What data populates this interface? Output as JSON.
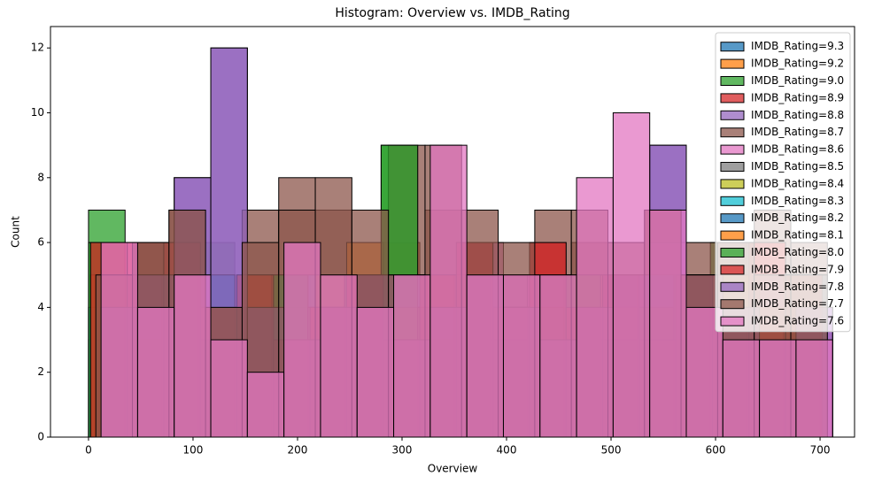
{
  "chart_data": {
    "type": "histogram",
    "title": "Histogram: Overview vs. IMDB_Rating",
    "x_label": "Overview",
    "y_label": "Count",
    "xlim": [
      -36.4,
      733
    ],
    "ylim": [
      0,
      12.66
    ],
    "xticks": [
      0,
      100,
      200,
      300,
      400,
      500,
      600,
      700
    ],
    "yticks": [
      0,
      2,
      4,
      6,
      8,
      10,
      12
    ],
    "legend": "upper right",
    "series": [
      {
        "name": "IMDB_Rating=9.3",
        "color": "#1f77b4",
        "bins": [
          0,
          35,
          70,
          105,
          140,
          175,
          210,
          245,
          280,
          315,
          350,
          385,
          420,
          455,
          490,
          525,
          560,
          595,
          630,
          665,
          700
        ],
        "values": [
          4,
          5,
          3,
          4,
          5,
          3,
          4,
          5,
          4,
          3,
          5,
          4,
          4,
          3,
          5,
          4,
          3,
          4,
          5,
          3
        ]
      },
      {
        "name": "IMDB_Rating=9.2",
        "color": "#ff7f0e",
        "bins": [
          2,
          37,
          72,
          107,
          142,
          177,
          212,
          247,
          282,
          317,
          352,
          387,
          422,
          457,
          492,
          527,
          562,
          597,
          632,
          667,
          702
        ],
        "values": [
          5,
          4,
          5,
          3,
          4,
          5,
          4,
          3,
          6,
          4,
          3,
          5,
          4,
          4,
          5,
          3,
          4,
          5,
          3,
          4
        ]
      },
      {
        "name": "IMDB_Rating=9.0",
        "color": "#2ca02c",
        "bins": [
          0,
          35,
          70,
          105,
          140,
          175,
          210,
          245,
          280,
          315,
          350,
          385,
          420,
          455,
          490,
          525,
          560,
          595,
          630,
          665,
          700
        ],
        "values": [
          7,
          5,
          4,
          6,
          3,
          5,
          4,
          3,
          9,
          5,
          4,
          3,
          5,
          4,
          3,
          5,
          4,
          6,
          5,
          4
        ]
      },
      {
        "name": "IMDB_Rating=8.9",
        "color": "#d62728",
        "bins": [
          2,
          37,
          72,
          107,
          142,
          177,
          212,
          247,
          282,
          317,
          352,
          387,
          422,
          457,
          492,
          527,
          562,
          597,
          632,
          667,
          702
        ],
        "values": [
          5,
          6,
          4,
          5,
          3,
          4,
          5,
          3,
          4,
          5,
          6,
          4,
          6,
          5,
          4,
          3,
          5,
          4,
          6,
          3
        ]
      },
      {
        "name": "IMDB_Rating=8.8",
        "color": "#9467bd",
        "bins": [
          12,
          47,
          82,
          117,
          152,
          187,
          222,
          257,
          292,
          327,
          362,
          397,
          432,
          467,
          502,
          537,
          572,
          607,
          642,
          677,
          712
        ],
        "values": [
          4,
          5,
          8,
          12,
          4,
          3,
          4,
          5,
          4,
          3,
          5,
          4,
          3,
          5,
          4,
          9,
          5,
          4,
          3,
          4
        ]
      },
      {
        "name": "IMDB_Rating=8.7",
        "color": "#8c564b",
        "bins": [
          7,
          42,
          77,
          112,
          147,
          182,
          217,
          252,
          287,
          322,
          357,
          392,
          427,
          462,
          497,
          532,
          567,
          602,
          637,
          672,
          707
        ],
        "values": [
          4,
          6,
          7,
          4,
          7,
          8,
          7,
          5,
          9,
          7,
          6,
          5,
          7,
          6,
          5,
          7,
          6,
          6,
          7,
          6
        ]
      },
      {
        "name": "IMDB_Rating=8.6",
        "color": "#e377c2",
        "bins": [
          12,
          47,
          82,
          117,
          152,
          187,
          222,
          257,
          292,
          327,
          362,
          397,
          432,
          467,
          502,
          537,
          572,
          607,
          642,
          677,
          712
        ],
        "values": [
          5,
          4,
          5,
          4,
          3,
          4,
          5,
          4,
          5,
          4,
          6,
          5,
          4,
          5,
          5,
          6,
          5,
          4,
          5,
          4
        ]
      },
      {
        "name": "IMDB_Rating=8.5",
        "color": "#7f7f7f",
        "bins": [
          0,
          35,
          70,
          105,
          140,
          175,
          210,
          245,
          280,
          315,
          350,
          385,
          420,
          455,
          490,
          525,
          560,
          595,
          630,
          665,
          700
        ],
        "values": [
          3,
          4,
          5,
          3,
          4,
          3,
          4,
          5,
          4,
          3,
          4,
          5,
          3,
          4,
          5,
          3,
          4,
          5,
          3,
          4
        ]
      },
      {
        "name": "IMDB_Rating=8.4",
        "color": "#bcbd22",
        "bins": [
          2,
          37,
          72,
          107,
          142,
          177,
          212,
          247,
          282,
          317,
          352,
          387,
          422,
          457,
          492,
          527,
          562,
          597,
          632,
          667,
          702
        ],
        "values": [
          4,
          3,
          5,
          4,
          3,
          4,
          5,
          3,
          4,
          5,
          3,
          4,
          4,
          5,
          3,
          4,
          5,
          3,
          4,
          3
        ]
      },
      {
        "name": "IMDB_Rating=8.3",
        "color": "#17becf",
        "bins": [
          7,
          42,
          77,
          112,
          147,
          182,
          217,
          252,
          287,
          322,
          357,
          392,
          427,
          462,
          497,
          532,
          567,
          602,
          637,
          672,
          707
        ],
        "values": [
          3,
          5,
          4,
          3,
          4,
          5,
          3,
          4,
          5,
          4,
          3,
          4,
          5,
          3,
          4,
          5,
          3,
          4,
          4,
          5
        ]
      },
      {
        "name": "IMDB_Rating=8.2",
        "color": "#1f77b4",
        "bins": [
          0,
          35,
          70,
          105,
          140,
          175,
          210,
          245,
          280,
          315,
          350,
          385,
          420,
          455,
          490,
          525,
          560,
          595,
          630,
          665,
          700
        ],
        "values": [
          4,
          4,
          3,
          5,
          4,
          3,
          4,
          5,
          3,
          4,
          5,
          4,
          3,
          4,
          5,
          4,
          3,
          5,
          4,
          4
        ]
      },
      {
        "name": "IMDB_Rating=8.1",
        "color": "#ff7f0e",
        "bins": [
          2,
          37,
          72,
          107,
          142,
          177,
          212,
          247,
          282,
          317,
          352,
          387,
          422,
          457,
          492,
          527,
          562,
          597,
          632,
          667,
          702
        ],
        "values": [
          5,
          3,
          4,
          4,
          5,
          3,
          4,
          6,
          4,
          3,
          5,
          4,
          3,
          5,
          4,
          4,
          3,
          5,
          4,
          3
        ]
      },
      {
        "name": "IMDB_Rating=8.0",
        "color": "#2ca02c",
        "bins": [
          0,
          35,
          70,
          105,
          140,
          175,
          210,
          245,
          280,
          315,
          350,
          385,
          420,
          455,
          490,
          525,
          560,
          595,
          630,
          665,
          700
        ],
        "values": [
          6,
          4,
          5,
          3,
          4,
          5,
          4,
          5,
          9,
          4,
          5,
          3,
          4,
          5,
          3,
          4,
          5,
          4,
          3,
          5
        ]
      },
      {
        "name": "IMDB_Rating=7.9",
        "color": "#d62728",
        "bins": [
          2,
          37,
          72,
          107,
          142,
          177,
          212,
          247,
          282,
          317,
          352,
          387,
          422,
          457,
          492,
          527,
          562,
          597,
          632,
          667,
          702
        ],
        "values": [
          6,
          5,
          6,
          4,
          5,
          3,
          4,
          5,
          3,
          5,
          6,
          4,
          6,
          4,
          5,
          3,
          5,
          4,
          6,
          5
        ]
      },
      {
        "name": "IMDB_Rating=7.8",
        "color": "#9467bd",
        "bins": [
          12,
          47,
          82,
          117,
          152,
          187,
          222,
          257,
          292,
          327,
          362,
          397,
          432,
          467,
          502,
          537,
          572,
          607,
          642,
          677,
          712
        ],
        "values": [
          4,
          5,
          8,
          12,
          4,
          3,
          4,
          5,
          3,
          4,
          5,
          4,
          3,
          4,
          5,
          9,
          5,
          4,
          3,
          4
        ]
      },
      {
        "name": "IMDB_Rating=7.7",
        "color": "#8c564b",
        "bins": [
          7,
          42,
          77,
          112,
          147,
          182,
          217,
          252,
          287,
          322,
          357,
          392,
          427,
          462,
          497,
          532,
          567,
          602,
          637,
          672,
          707
        ],
        "values": [
          5,
          6,
          7,
          4,
          6,
          7,
          8,
          7,
          5,
          9,
          7,
          6,
          5,
          7,
          6,
          7,
          5,
          6,
          5,
          5
        ]
      },
      {
        "name": "IMDB_Rating=7.6",
        "color": "#e377c2",
        "bins": [
          12,
          47,
          82,
          117,
          152,
          187,
          222,
          257,
          292,
          327,
          362,
          397,
          432,
          467,
          502,
          537,
          572,
          607,
          642,
          677,
          712
        ],
        "values": [
          6,
          4,
          5,
          3,
          2,
          6,
          5,
          4,
          5,
          9,
          5,
          5,
          5,
          8,
          10,
          7,
          4,
          3,
          3,
          3
        ]
      }
    ]
  }
}
